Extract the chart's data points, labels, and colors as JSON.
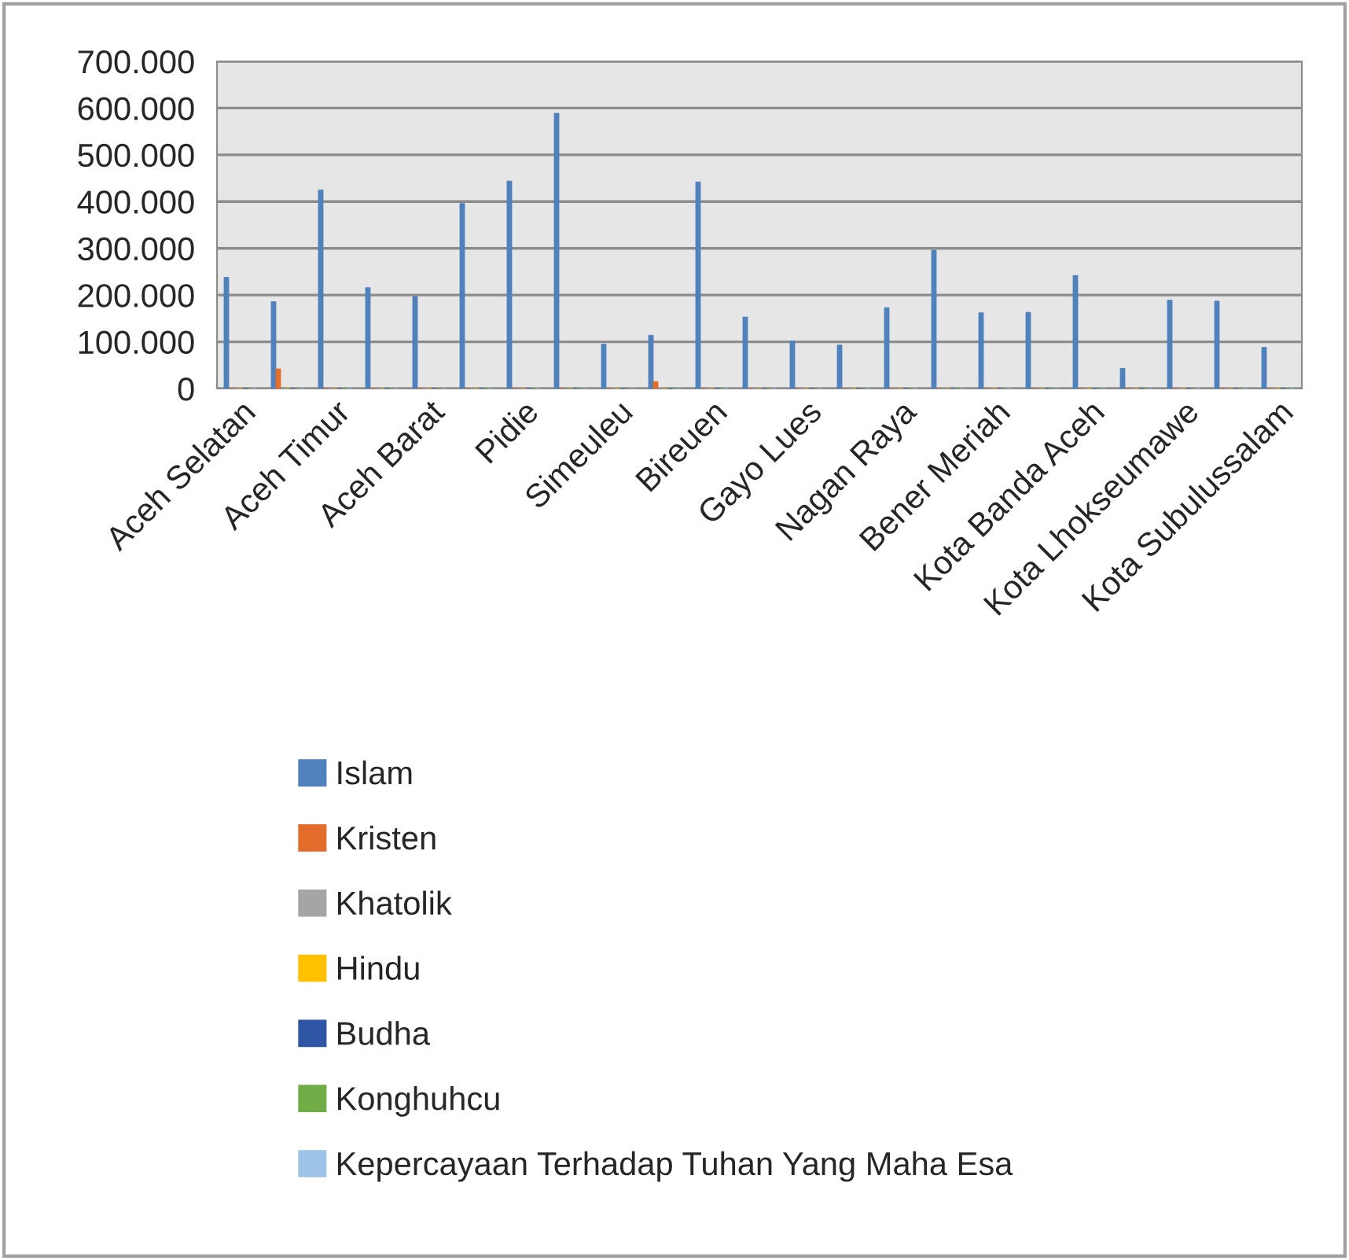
{
  "chart_data": {
    "type": "bar",
    "categories": [
      "Aceh Selatan",
      null,
      "Aceh Timur",
      null,
      "Aceh Barat",
      null,
      "Pidie",
      null,
      "Simeuleu",
      null,
      "Bireuen",
      null,
      "Gayo Lues",
      null,
      "Nagan Raya",
      null,
      "Bener Meriah",
      null,
      "Kota Banda Aceh",
      null,
      "Kota Lhokseumawe",
      null,
      "Kota Subulussalam"
    ],
    "series": [
      {
        "name": "Islam",
        "color": "#4f81bd",
        "values": [
          238000,
          186000,
          425000,
          216000,
          197000,
          396000,
          444000,
          589000,
          95000,
          114000,
          442000,
          153000,
          102000,
          93000,
          173000,
          296000,
          162000,
          163000,
          242000,
          43000,
          189000,
          187000,
          88000
        ]
      },
      {
        "name": "Kristen",
        "color": "#e36c2b",
        "values": [
          0,
          42000,
          0,
          0,
          0,
          0,
          0,
          0,
          0,
          15000,
          0,
          0,
          0,
          0,
          0,
          0,
          0,
          0,
          0,
          0,
          0,
          0,
          0
        ]
      },
      {
        "name": "Khatolik",
        "color": "#a5a5a5",
        "values": [
          0,
          0,
          0,
          0,
          0,
          0,
          0,
          0,
          0,
          0,
          0,
          0,
          0,
          0,
          0,
          0,
          0,
          0,
          0,
          0,
          0,
          0,
          0
        ]
      },
      {
        "name": "Hindu",
        "color": "#ffc000",
        "values": [
          0,
          0,
          0,
          0,
          0,
          0,
          0,
          0,
          0,
          0,
          0,
          0,
          0,
          0,
          0,
          0,
          0,
          0,
          0,
          0,
          0,
          0,
          0
        ]
      },
      {
        "name": "Budha",
        "color": "#2f55a5",
        "values": [
          0,
          0,
          0,
          0,
          0,
          0,
          0,
          0,
          0,
          0,
          0,
          0,
          0,
          0,
          0,
          0,
          0,
          0,
          0,
          0,
          0,
          0,
          0
        ]
      },
      {
        "name": "Konghuhcu",
        "color": "#70ad47",
        "values": [
          0,
          0,
          0,
          0,
          0,
          0,
          0,
          0,
          0,
          0,
          0,
          0,
          0,
          0,
          0,
          0,
          0,
          0,
          0,
          0,
          0,
          0,
          0
        ]
      },
      {
        "name": "Kepercayaan Terhadap Tuhan Yang Maha Esa",
        "color": "#9dc3e6",
        "values": [
          0,
          0,
          0,
          0,
          0,
          0,
          0,
          0,
          0,
          0,
          0,
          0,
          0,
          0,
          0,
          0,
          0,
          0,
          0,
          0,
          0,
          0,
          0
        ]
      }
    ],
    "ylim": [
      0,
      700000
    ],
    "yticks": [
      {
        "value": 0,
        "label": "0"
      },
      {
        "value": 100000,
        "label": "100.000"
      },
      {
        "value": 200000,
        "label": "200.000"
      },
      {
        "value": 300000,
        "label": "300.000"
      },
      {
        "value": 400000,
        "label": "400.000"
      },
      {
        "value": 500000,
        "label": "500.000"
      },
      {
        "value": 600000,
        "label": "600.000"
      },
      {
        "value": 700000,
        "label": "700.000"
      }
    ],
    "grid": "y",
    "legend": "bottom"
  }
}
